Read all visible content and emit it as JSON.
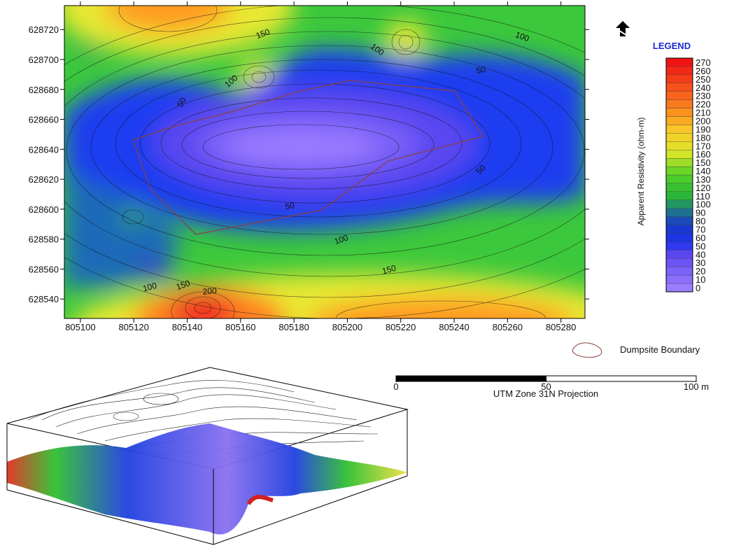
{
  "map": {
    "xlim": [
      805094,
      805289
    ],
    "ylim": [
      628527,
      628736
    ],
    "xticks": [
      805100,
      805120,
      805140,
      805160,
      805180,
      805200,
      805220,
      805240,
      805260,
      805280
    ],
    "yticks": [
      628540,
      628560,
      628580,
      628600,
      628620,
      628640,
      628660,
      628680,
      628700,
      628720
    ],
    "contour_labels": [
      150,
      100,
      50,
      100,
      50,
      100,
      50,
      50,
      100,
      150,
      100,
      150,
      200
    ]
  },
  "legend": {
    "title": "LEGEND",
    "label": "Apparent Resistivity (ohm-m)",
    "ticks": [
      0,
      10,
      20,
      30,
      40,
      50,
      60,
      70,
      80,
      90,
      100,
      110,
      120,
      130,
      140,
      150,
      160,
      170,
      180,
      190,
      200,
      210,
      220,
      230,
      240,
      250,
      260,
      270
    ]
  },
  "boundary_label": "Dumpsite Boundary",
  "scale_bar": {
    "range": [
      0,
      100
    ],
    "ticks": [
      0,
      50,
      {
        "value": 100,
        "label": "100 m"
      }
    ],
    "projection": "UTM Zone 31N Projection"
  }
}
